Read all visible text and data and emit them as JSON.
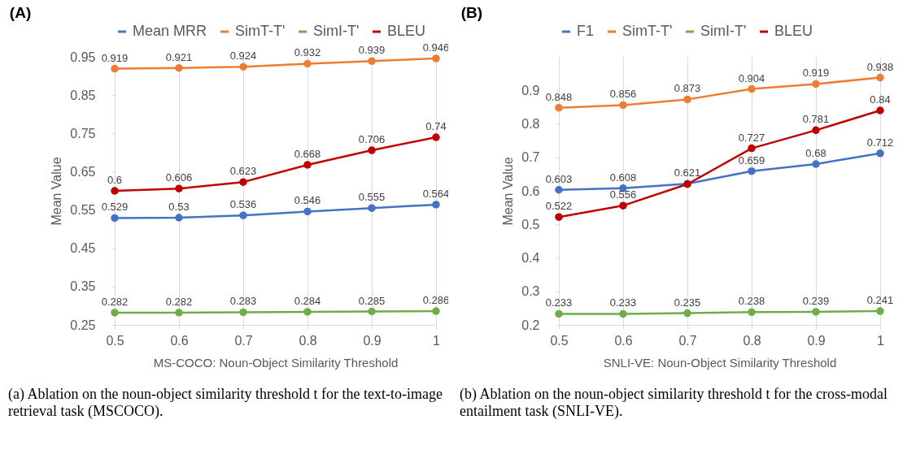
{
  "chart_data": [
    {
      "type": "line",
      "title": "(A)",
      "xlabel": "MS-COCO: Noun-Object Similarity Threshold",
      "ylabel": "Mean Value",
      "x": [
        0.5,
        0.6,
        0.7,
        0.8,
        0.9,
        1
      ],
      "xlim": [
        0.5,
        1
      ],
      "xticks": [
        0.5,
        0.6,
        0.7,
        0.8,
        0.9,
        1
      ],
      "ylim": [
        0.25,
        0.95
      ],
      "yticks": [
        0.25,
        0.35,
        0.45,
        0.55,
        0.65,
        0.75,
        0.85,
        0.95
      ],
      "grid": "x",
      "legend": "top",
      "marker": "circle",
      "data_labels": true,
      "annotations": [
        "(a) Ablation on the noun-object similarity threshold t for the text-to-image retrieval task (MSCOCO)."
      ],
      "series": [
        {
          "name": "Mean MRR",
          "color": "#4472c4",
          "values": [
            0.529,
            0.53,
            0.536,
            0.546,
            0.555,
            0.564
          ]
        },
        {
          "name": "SimT-T'",
          "color": "#ed7d31",
          "values": [
            0.919,
            0.921,
            0.924,
            0.932,
            0.939,
            0.946
          ]
        },
        {
          "name": "SimI-T'",
          "color": "#70ad47",
          "values": [
            0.282,
            0.282,
            0.283,
            0.284,
            0.285,
            0.286
          ]
        },
        {
          "name": "BLEU",
          "color": "#c00000",
          "values": [
            0.6,
            0.606,
            0.623,
            0.668,
            0.706,
            0.74
          ]
        }
      ]
    },
    {
      "type": "line",
      "title": "(B)",
      "xlabel": "SNLI-VE: Noun-Object Similarity Threshold",
      "ylabel": "Mean Value",
      "x": [
        0.5,
        0.6,
        0.7,
        0.8,
        0.9,
        1
      ],
      "xlim": [
        0.5,
        1
      ],
      "xticks": [
        0.5,
        0.6,
        0.7,
        0.8,
        0.9,
        1
      ],
      "ylim": [
        0.2,
        1
      ],
      "yticks": [
        0.2,
        0.3,
        0.4,
        0.5,
        0.6,
        0.7,
        0.8,
        0.9
      ],
      "grid": "x",
      "legend": "top",
      "marker": "circle",
      "data_labels": true,
      "annotations": [
        "(b) Ablation on the noun-object similarity threshold t for the cross-modal entailment task (SNLI-VE)."
      ],
      "series": [
        {
          "name": "F1",
          "color": "#4472c4",
          "values": [
            0.603,
            0.608,
            0.621,
            0.659,
            0.68,
            0.712
          ]
        },
        {
          "name": "SimT-T'",
          "color": "#ed7d31",
          "values": [
            0.848,
            0.856,
            0.873,
            0.904,
            0.919,
            0.938
          ]
        },
        {
          "name": "SimI-T'",
          "color": "#70ad47",
          "values": [
            0.233,
            0.233,
            0.235,
            0.238,
            0.239,
            0.241
          ]
        },
        {
          "name": "BLEU",
          "color": "#c00000",
          "values": [
            0.522,
            0.556,
            0.62,
            0.727,
            0.781,
            0.84
          ],
          "value_labels": [
            "0.522",
            "0.556",
            null,
            "0.727",
            "0.781",
            "0.84"
          ]
        }
      ]
    }
  ]
}
